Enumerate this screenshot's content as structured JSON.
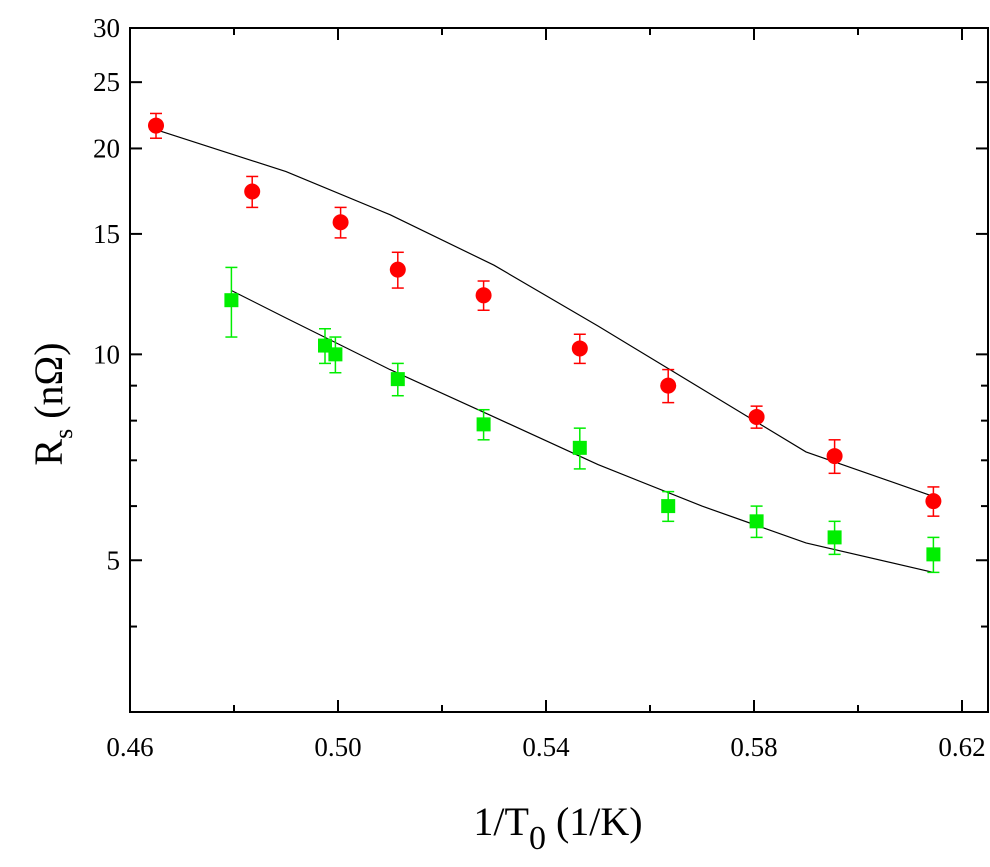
{
  "chart_data": {
    "type": "scatter",
    "xlabel": {
      "main": "1/T",
      "sub": "0",
      "rest": " (1/K)"
    },
    "ylabel": {
      "main": "R",
      "sub": "s",
      "rest": " (nΩ)"
    },
    "xlim": [
      0.46,
      0.625
    ],
    "ylim": [
      3,
      30
    ],
    "yscale": "log",
    "xticks": [
      0.46,
      0.5,
      0.54,
      0.58,
      0.62
    ],
    "xtick_labels": [
      "0.46",
      "0.50",
      "0.54",
      "0.58",
      "0.62"
    ],
    "yticks": [
      5,
      10,
      15,
      20,
      25,
      30
    ],
    "ytick_labels": [
      "5",
      "10",
      "15",
      "20",
      "25",
      "30"
    ],
    "grid": false,
    "series": [
      {
        "name": "red circles",
        "marker": "circle",
        "color": "#ff0000",
        "x": [
          0.465,
          0.4835,
          0.5005,
          0.5115,
          0.528,
          0.5465,
          0.5635,
          0.5805,
          0.5955,
          0.6145
        ],
        "y": [
          21.6,
          17.3,
          15.6,
          13.3,
          12.2,
          10.2,
          9.0,
          8.1,
          7.1,
          6.1
        ],
        "err": [
          0.9,
          0.9,
          0.8,
          0.8,
          0.6,
          0.5,
          0.5,
          0.3,
          0.4,
          0.3
        ],
        "fit": [
          [
            0.465,
            21.3
          ],
          [
            0.49,
            18.5
          ],
          [
            0.51,
            16.0
          ],
          [
            0.53,
            13.5
          ],
          [
            0.55,
            11.0
          ],
          [
            0.57,
            8.9
          ],
          [
            0.59,
            7.2
          ],
          [
            0.6145,
            6.2
          ]
        ]
      },
      {
        "name": "green squares",
        "marker": "square",
        "color": "#00ee00",
        "x": [
          0.4795,
          0.4975,
          0.4995,
          0.5115,
          0.528,
          0.5465,
          0.5635,
          0.5805,
          0.5955,
          0.6145
        ],
        "y": [
          12.0,
          10.3,
          10.0,
          9.2,
          7.9,
          7.3,
          6.0,
          5.7,
          5.4,
          5.1
        ],
        "err": [
          1.4,
          0.6,
          0.6,
          0.5,
          0.4,
          0.5,
          0.3,
          0.3,
          0.3,
          0.3
        ],
        "fit": [
          [
            0.4795,
            12.4
          ],
          [
            0.49,
            11.3
          ],
          [
            0.51,
            9.5
          ],
          [
            0.53,
            8.1
          ],
          [
            0.55,
            6.9
          ],
          [
            0.57,
            6.0
          ],
          [
            0.59,
            5.3
          ],
          [
            0.6145,
            4.8
          ]
        ]
      }
    ]
  }
}
